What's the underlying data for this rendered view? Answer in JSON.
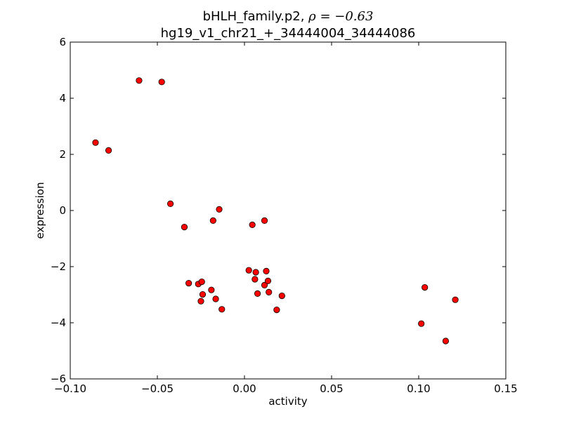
{
  "chart_data": {
    "type": "scatter",
    "title_line1": "bHLH_family.p2, ",
    "title_rho_symbol": "ρ",
    "title_rho_value": " = −0.63",
    "title_line2": "hg19_v1_chr21_+_34444004_34444086",
    "xlabel": "activity",
    "ylabel": "expression",
    "xlim": [
      -0.1,
      0.15
    ],
    "ylim": [
      -6,
      6
    ],
    "xticks": [
      -0.1,
      -0.05,
      0.0,
      0.05,
      0.1,
      0.15
    ],
    "xtick_labels": [
      "−0.10",
      "−0.05",
      "0.00",
      "0.05",
      "0.10",
      "0.15"
    ],
    "yticks": [
      -6,
      -4,
      -2,
      0,
      2,
      4,
      6
    ],
    "ytick_labels": [
      "−6",
      "−4",
      "−2",
      "0",
      "2",
      "4",
      "6"
    ],
    "grid": false,
    "marker_color": "#ff0000",
    "marker_edge_color": "#000000",
    "points": [
      {
        "x": -0.0855,
        "y": 2.42
      },
      {
        "x": -0.078,
        "y": 2.14
      },
      {
        "x": -0.0605,
        "y": 4.63
      },
      {
        "x": -0.0475,
        "y": 4.58
      },
      {
        "x": -0.0425,
        "y": 0.24
      },
      {
        "x": -0.0345,
        "y": -0.59
      },
      {
        "x": -0.032,
        "y": -2.59
      },
      {
        "x": -0.0265,
        "y": -2.62
      },
      {
        "x": -0.0245,
        "y": -2.54
      },
      {
        "x": -0.024,
        "y": -2.99
      },
      {
        "x": -0.025,
        "y": -3.23
      },
      {
        "x": -0.019,
        "y": -2.83
      },
      {
        "x": -0.018,
        "y": -0.36
      },
      {
        "x": -0.0165,
        "y": -3.15
      },
      {
        "x": -0.0145,
        "y": 0.04
      },
      {
        "x": -0.013,
        "y": -3.52
      },
      {
        "x": 0.0025,
        "y": -2.13
      },
      {
        "x": 0.0045,
        "y": -0.51
      },
      {
        "x": 0.006,
        "y": -2.45
      },
      {
        "x": 0.0065,
        "y": -2.2
      },
      {
        "x": 0.0075,
        "y": -2.96
      },
      {
        "x": 0.0115,
        "y": -0.36
      },
      {
        "x": 0.0115,
        "y": -2.66
      },
      {
        "x": 0.0125,
        "y": -2.16
      },
      {
        "x": 0.0135,
        "y": -2.51
      },
      {
        "x": 0.014,
        "y": -2.91
      },
      {
        "x": 0.0185,
        "y": -3.54
      },
      {
        "x": 0.0215,
        "y": -3.04
      },
      {
        "x": 0.1015,
        "y": -4.03
      },
      {
        "x": 0.1035,
        "y": -2.74
      },
      {
        "x": 0.1155,
        "y": -4.65
      },
      {
        "x": 0.121,
        "y": -3.18
      }
    ]
  }
}
